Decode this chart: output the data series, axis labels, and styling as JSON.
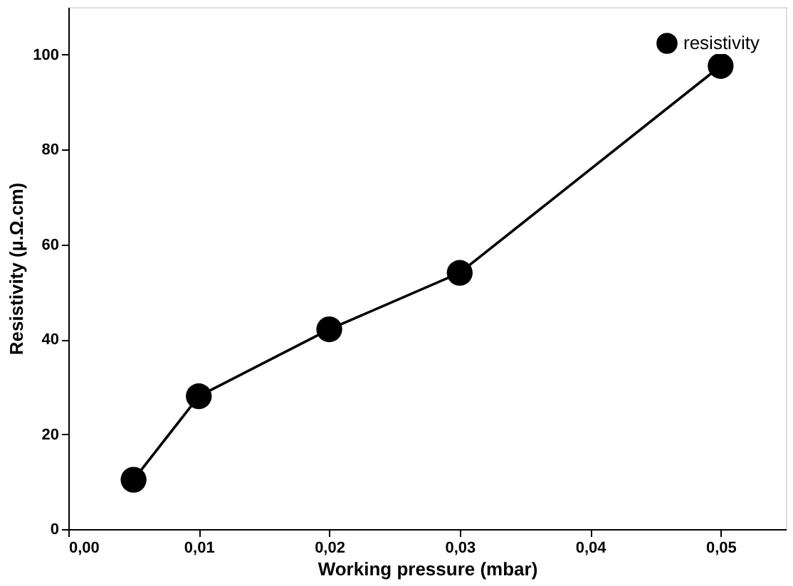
{
  "chart_data": {
    "type": "line",
    "xlabel": "Working pressure (mbar)",
    "ylabel": "Resistivity (µ.Ω.cm)",
    "x": [
      0.005,
      0.01,
      0.02,
      0.03,
      0.05
    ],
    "series": [
      {
        "name": "resistivity",
        "color": "#000000",
        "values": [
          10.4,
          28,
          42.1,
          54,
          97.6
        ]
      }
    ],
    "xlim": [
      0,
      0.055
    ],
    "ylim": [
      0,
      110
    ],
    "xticks": [
      {
        "value": 0,
        "label": "0,00"
      },
      {
        "value": 0.01,
        "label": "0,01"
      },
      {
        "value": 0.02,
        "label": "0,02"
      },
      {
        "value": 0.03,
        "label": "0,03"
      },
      {
        "value": 0.04,
        "label": "0,04"
      },
      {
        "value": 0.05,
        "label": "0,05"
      }
    ],
    "yticks": [
      0,
      20,
      40,
      60,
      80,
      100
    ],
    "marker": "circle",
    "line_style": "solid",
    "legend": "top right",
    "grid": false
  }
}
